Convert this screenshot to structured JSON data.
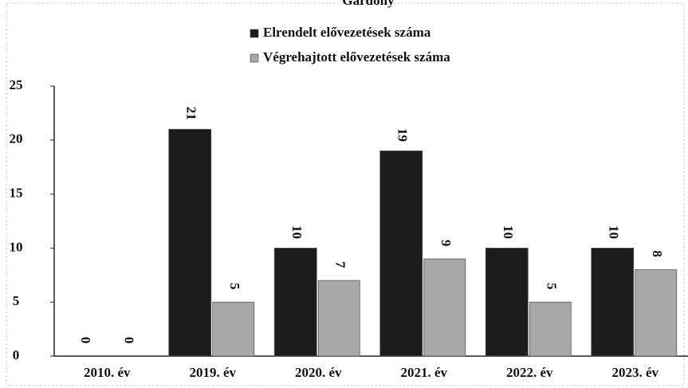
{
  "chart_data": {
    "type": "bar",
    "title": "Gardony",
    "categories": [
      "2010. év",
      "2019. év",
      "2020. év",
      "2021. év",
      "2022. év",
      "2023. év"
    ],
    "series": [
      {
        "name": "Elrendelt elővezetések száma",
        "color": "#1c1c1c",
        "values": [
          0,
          21,
          10,
          19,
          10,
          10
        ]
      },
      {
        "name": "Végrehajtott elővezetések száma",
        "color": "#a8a8a8",
        "values": [
          0,
          5,
          7,
          9,
          5,
          8
        ]
      }
    ],
    "ylim": [
      0,
      25
    ],
    "yticks": [
      0,
      5,
      10,
      15,
      20,
      25
    ],
    "legend": "top",
    "grid": false
  }
}
